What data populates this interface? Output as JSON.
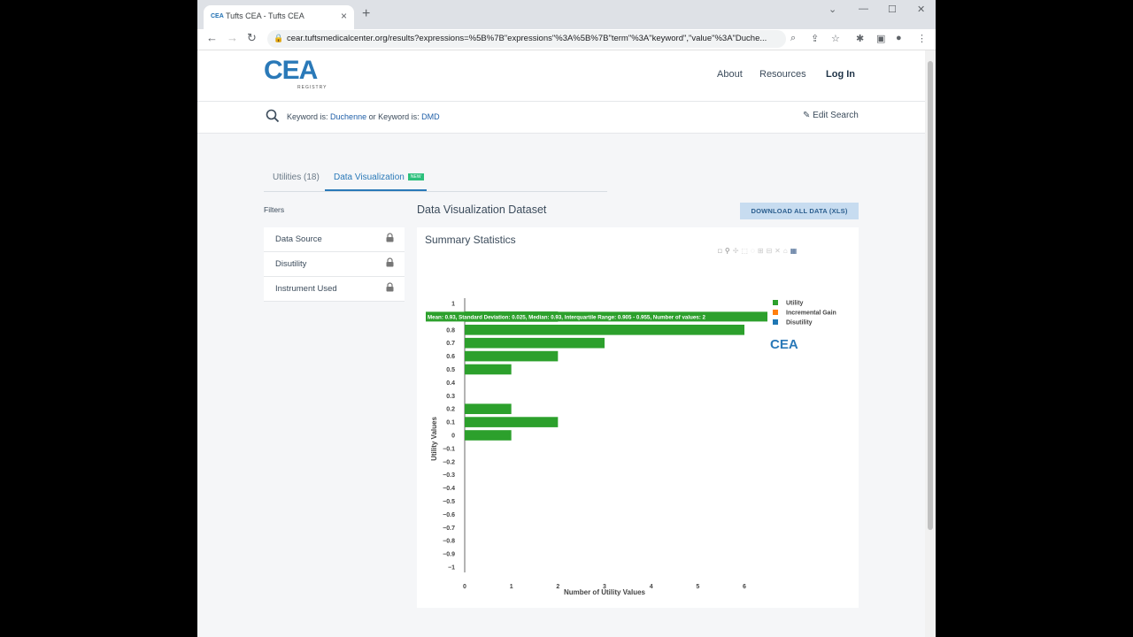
{
  "browser": {
    "tab_title": "Tufts CEA - Tufts CEA",
    "tab_favicon": "CEA",
    "url": "cear.tuftsmedicalcenter.org/results?expressions=%5B%7B\"expressions\"%3A%5B%7B\"term\"%3A\"keyword\",\"value\"%3A\"Duche..."
  },
  "header": {
    "logo_text": "CEA",
    "logo_sub": "REGISTRY",
    "nav": [
      "About",
      "Resources"
    ],
    "login": "Log In"
  },
  "search": {
    "prefix1": "Keyword is:",
    "term1": "Duchenne",
    "joiner": "or Keyword is:",
    "term2": "DMD",
    "edit": "Edit Search"
  },
  "tabs": {
    "utilities": "Utilities (18)",
    "dataviz": "Data Visualization",
    "badge": "NEW"
  },
  "filters": {
    "title": "Filters",
    "items": [
      "Data Source",
      "Disutility",
      "Instrument Used"
    ]
  },
  "main": {
    "title": "Data Visualization Dataset",
    "download": "DOWNLOAD ALL DATA (XLS)",
    "card_title": "Summary Statistics"
  },
  "chart_data": {
    "type": "bar",
    "orientation": "horizontal",
    "xlabel": "Number of Utility Values",
    "ylabel": "Utility Values",
    "xlim": [
      0,
      6.4
    ],
    "ylim": [
      -1,
      1
    ],
    "x_ticks": [
      "0",
      "1",
      "2",
      "3",
      "4",
      "5",
      "6"
    ],
    "y_ticks": [
      "1",
      "0.9",
      "0.8",
      "0.7",
      "0.6",
      "0.5",
      "0.4",
      "0.3",
      "0.2",
      "0.1",
      "0",
      "−0.1",
      "−0.2",
      "−0.3",
      "−0.4",
      "−0.5",
      "−0.6",
      "−0.7",
      "−0.8",
      "−0.9",
      "−1"
    ],
    "series": [
      {
        "name": "Utility",
        "color": "#2ca02c",
        "points": [
          {
            "y": 0.9,
            "x": 2
          },
          {
            "y": 0.8,
            "x": 6
          },
          {
            "y": 0.7,
            "x": 3
          },
          {
            "y": 0.6,
            "x": 2
          },
          {
            "y": 0.5,
            "x": 1
          },
          {
            "y": 0.2,
            "x": 1
          },
          {
            "y": 0.1,
            "x": 2
          },
          {
            "y": 0.0,
            "x": 1
          }
        ]
      },
      {
        "name": "Incremental Gain",
        "color": "#ff7f0e",
        "points": []
      },
      {
        "name": "Disutility",
        "color": "#1f77b4",
        "points": []
      }
    ],
    "legend_position": "right",
    "legend_logo": "CEA",
    "tooltip": "Mean: 0.93, Standard Deviation: 0.025, Median: 0.93, Interquartile Range: 0.905 - 0.955, Number of values: 2"
  }
}
